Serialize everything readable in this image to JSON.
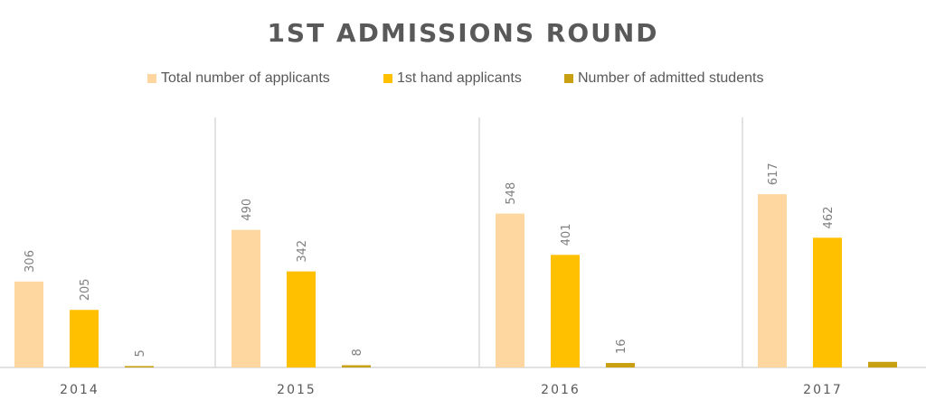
{
  "chart_data": {
    "type": "bar",
    "title": "1ST ADMISSIONS ROUND",
    "categories": [
      "2014",
      "2015",
      "2016",
      "2017"
    ],
    "series": [
      {
        "name": "Total number of applicants",
        "values": [
          306,
          490,
          548,
          617
        ],
        "color": "#fdd79f",
        "labels": [
          "306",
          "490",
          "548",
          "617"
        ]
      },
      {
        "name": "1st hand applicants",
        "values": [
          205,
          342,
          401,
          462
        ],
        "color": "#ffc000",
        "labels": [
          "205",
          "342",
          "401",
          "462"
        ]
      },
      {
        "name": "Number of admitted students",
        "values": [
          5,
          8,
          16,
          20
        ],
        "color": "#c9a011",
        "labels": [
          "5",
          "8",
          "16",
          ""
        ]
      }
    ],
    "xlabel": "",
    "ylabel": "",
    "ylim": [
      0,
      900
    ],
    "grid": false,
    "legend_position": "top"
  }
}
